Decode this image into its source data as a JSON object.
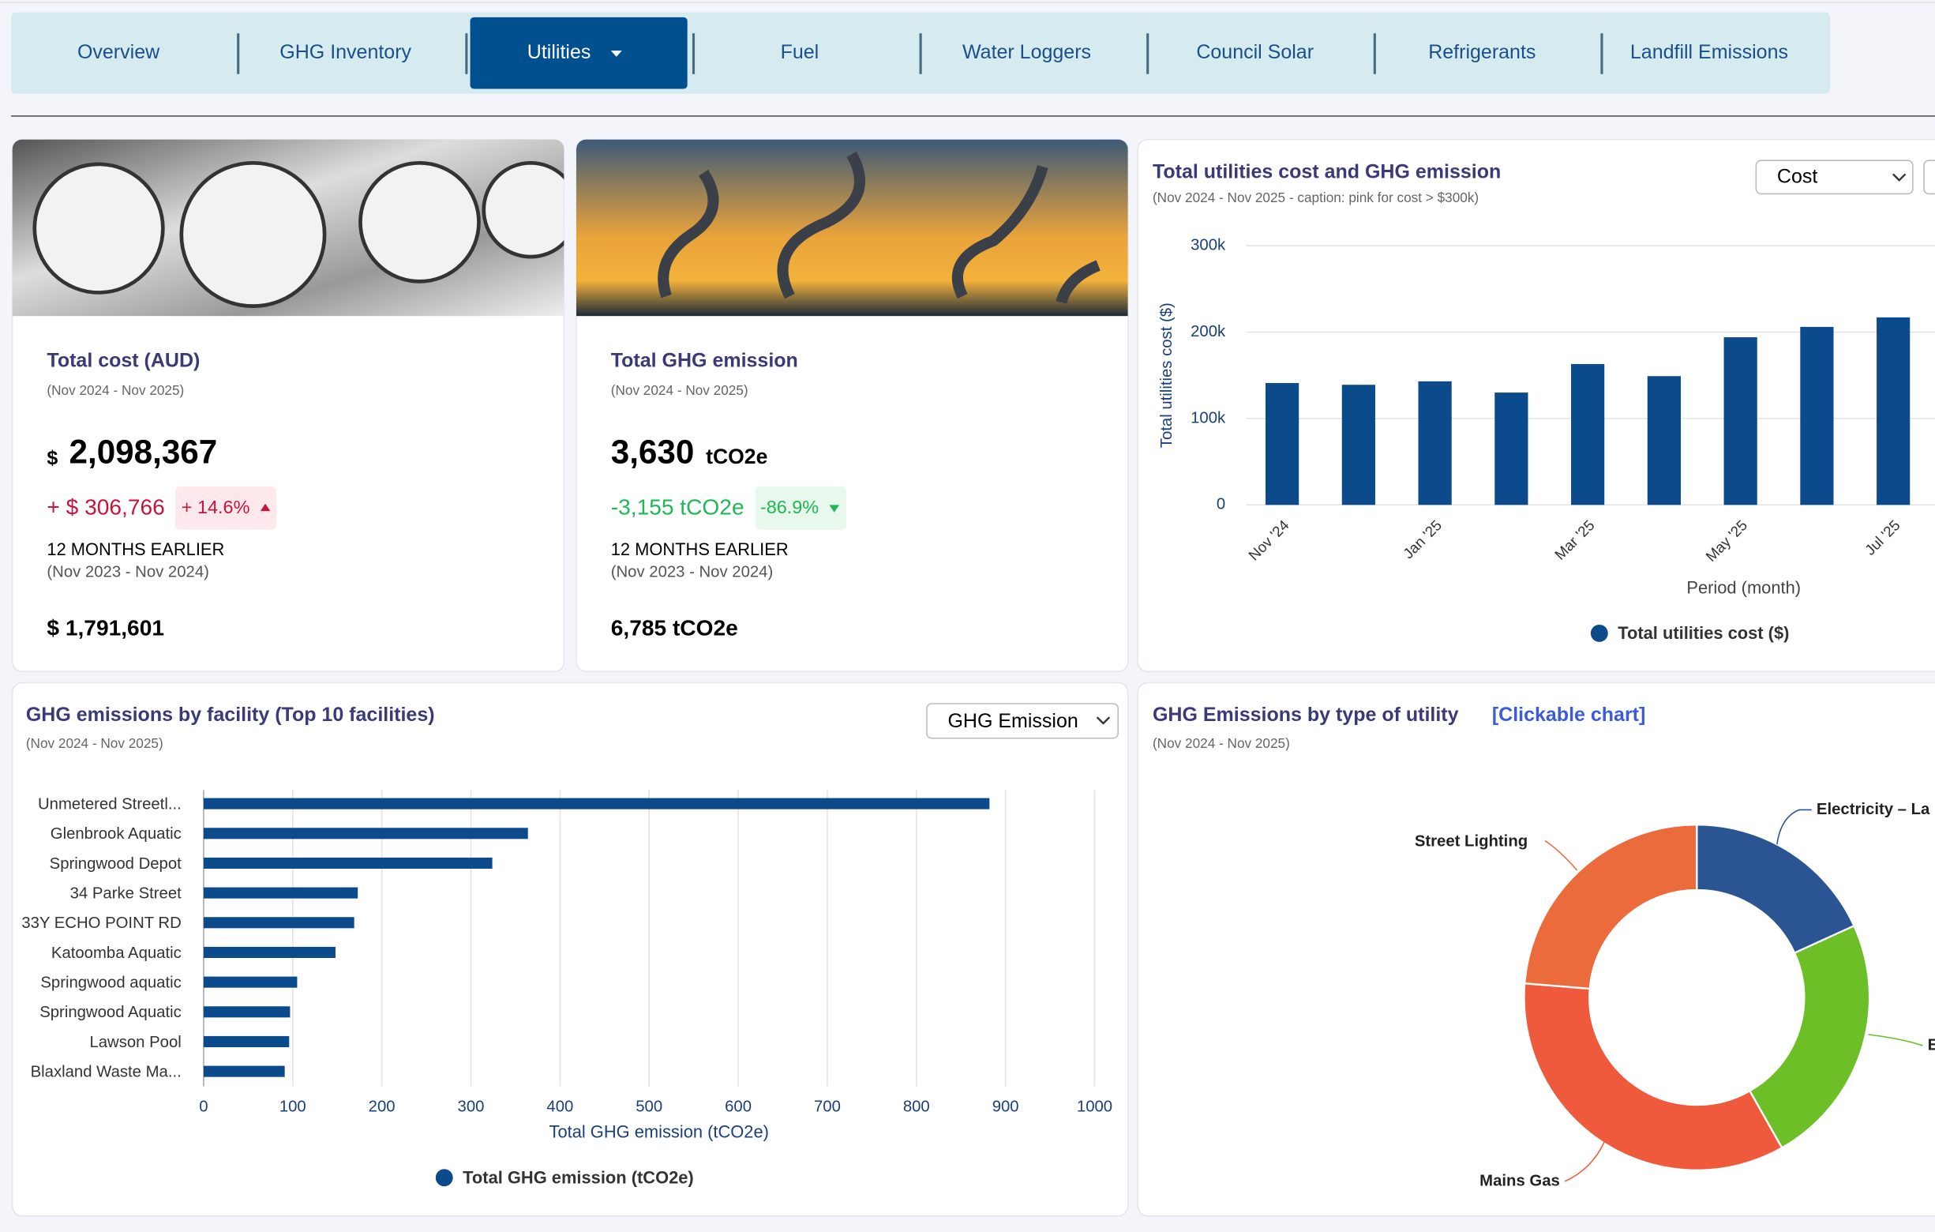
{
  "nav": {
    "tabs": [
      "Overview",
      "GHG Inventory",
      "Utilities",
      "Fuel",
      "Water Loggers",
      "Council Solar",
      "Refrigerants",
      "Landfill Emissions"
    ]
  },
  "cards": [
    {
      "title": "Total cost (AUD)",
      "period": "(Nov 2024 - Nov 2025)",
      "currency": "$",
      "value": "2,098,367",
      "change": "+ $ 306,766",
      "change_pct": "+ 14.6%",
      "earlier_label": "12 MONTHS EARLIER",
      "earlier_period": "(Nov 2023 - Nov 2024)",
      "earlier_value": "$ 1,791,601"
    },
    {
      "title": "Total GHG emission",
      "period": "(Nov 2024 - Nov 2025)",
      "value": "3,630",
      "unit": "tCO2e",
      "change": "-3,155 tCO2e",
      "change_pct": "-86.9%",
      "earlier_label": "12 MONTHS EARLIER",
      "earlier_period": "(Nov 2023 - Nov 2024)",
      "earlier_value": "6,785 tCO2e"
    }
  ],
  "chart_data": [
    {
      "type": "bar",
      "title": "Total utilities cost and GHG emission",
      "subtitle": "(Nov 2024 - Nov 2025 - caption: pink for cost > $300k)",
      "dropdown": "Cost",
      "y_label": "Total utilities cost ($)",
      "x_label": "Period (month)",
      "categories": [
        "Nov '24",
        null,
        "Jan '25",
        null,
        "Mar '25",
        null,
        "May '25",
        null,
        "Jul '25"
      ],
      "series": [
        {
          "name": "Total utilities cost ($)",
          "color": "#0b4a8b",
          "values": [
            141000,
            139000,
            143000,
            130000,
            163000,
            149000,
            194000,
            206000,
            217000
          ]
        }
      ],
      "ylim": [
        0,
        300000
      ],
      "yticks": [
        0,
        {
          "value": 100000,
          "label": "100k"
        },
        {
          "value": 200000,
          "label": "200k"
        },
        {
          "value": 300000,
          "label": "300k"
        }
      ],
      "grid": true
    },
    {
      "type": "hbar",
      "title": "GHG emissions by facility (Top 10 facilities)",
      "subtitle": "(Nov 2024 - Nov 2025)",
      "dropdown": "GHG Emission",
      "x_label": "Total GHG emission (tCO2e)",
      "categories": [
        "Unmetered Streetl...",
        "Glenbrook Aquatic",
        "Springwood Depot",
        "34 Parke Street",
        "33Y ECHO POINT RD",
        "Katoomba Aquatic",
        "Springwood aquatic",
        "Springwood Aquatic",
        "Lawson Pool",
        "Blaxland Waste Ma..."
      ],
      "series": [
        {
          "name": "Total GHG emission (tCO2e)",
          "color": "#0b4a8b",
          "values": [
            882,
            364,
            324,
            173,
            169,
            148,
            105,
            97,
            96,
            91
          ]
        }
      ],
      "xlim": [
        0,
        1000
      ],
      "xticks": [
        0,
        100,
        200,
        300,
        400,
        500,
        600,
        700,
        800,
        900,
        1000
      ],
      "grid": true
    },
    {
      "type": "donut",
      "title": "GHG Emissions by type of utility",
      "title_link": "[Clickable chart]",
      "subtitle": "(Nov 2024 - Nov 2025)",
      "categories": [
        "Electricity – La",
        "E",
        "Mains Gas",
        "Street Lighting"
      ],
      "values": [
        18.2,
        23.6,
        34.5,
        23.7
      ],
      "colors": [
        "#2a5592",
        "#6cbf26",
        "#f05a3c",
        "#ec6b3c"
      ]
    }
  ]
}
